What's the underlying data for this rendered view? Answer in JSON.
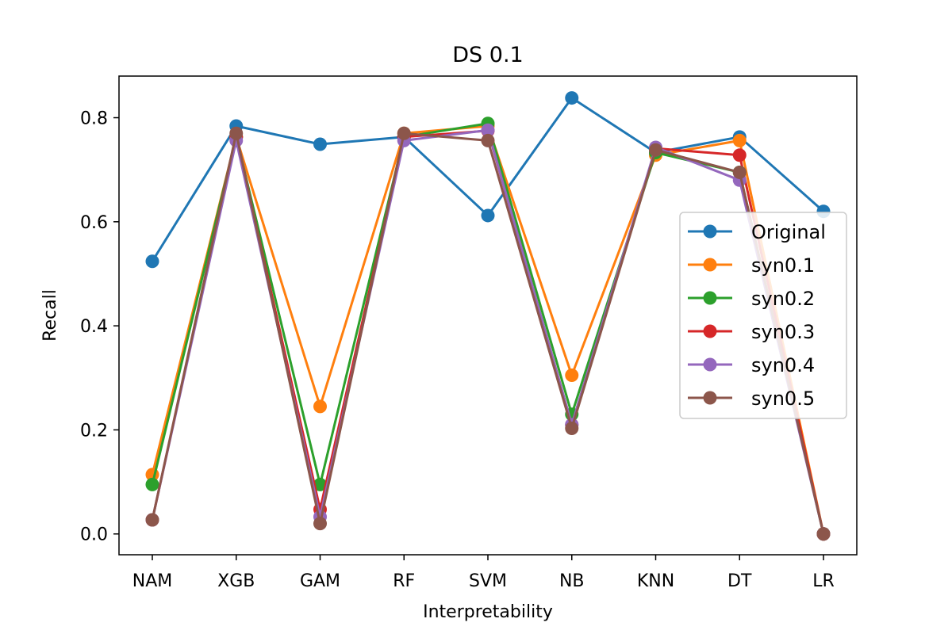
{
  "chart_data": {
    "type": "line",
    "title": "DS 0.1",
    "xlabel": "Interpretability",
    "ylabel": "Recall",
    "categories": [
      "NAM",
      "XGB",
      "GAM",
      "RF",
      "SVM",
      "NB",
      "KNN",
      "DT",
      "LR"
    ],
    "ylim": [
      -0.04,
      0.88
    ],
    "yticks": [
      "0.0",
      "0.2",
      "0.4",
      "0.6",
      "0.8"
    ],
    "grid": false,
    "legend_position": "center-right",
    "series": [
      {
        "name": "Original",
        "color": "#1f77b4",
        "values": [
          0.524,
          0.784,
          0.749,
          0.763,
          0.612,
          0.838,
          0.733,
          0.763,
          0.62
        ]
      },
      {
        "name": "syn0.1",
        "color": "#ff7f0e",
        "values": [
          0.114,
          0.763,
          0.245,
          0.77,
          0.784,
          0.305,
          0.728,
          0.756,
          0.0
        ]
      },
      {
        "name": "syn0.2",
        "color": "#2ca02c",
        "values": [
          0.095,
          0.763,
          0.095,
          0.763,
          0.789,
          0.23,
          0.733,
          0.695,
          0.0
        ]
      },
      {
        "name": "syn0.3",
        "color": "#d62728",
        "values": [
          0.027,
          0.763,
          0.047,
          0.763,
          0.775,
          0.21,
          0.741,
          0.728,
          0.0
        ]
      },
      {
        "name": "syn0.4",
        "color": "#9467bd",
        "values": [
          0.027,
          0.756,
          0.033,
          0.756,
          0.776,
          0.21,
          0.743,
          0.68,
          0.0
        ]
      },
      {
        "name": "syn0.5",
        "color": "#8c564b",
        "values": [
          0.027,
          0.77,
          0.02,
          0.77,
          0.756,
          0.203,
          0.738,
          0.695,
          0.0
        ]
      }
    ]
  }
}
